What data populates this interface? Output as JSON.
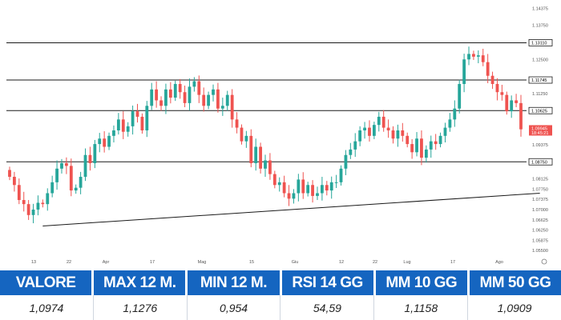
{
  "chart_data": {
    "type": "candlestick",
    "y_ticks": [
      "1.14375",
      "1.13750",
      "1.13110",
      "1.12500",
      "1.11745",
      "1.11250",
      "1.10625",
      "1.09945",
      "1.09375",
      "1.08750",
      "1.08125",
      "1.07750",
      "1.07375",
      "1.07000",
      "1.06625",
      "1.06250",
      "1.05875",
      "1.05500"
    ],
    "y_range": [
      1.053,
      1.145
    ],
    "x_ticks": [
      "13",
      "22",
      "Apr",
      "17",
      "Mag",
      "15",
      "Giu",
      "12",
      "22",
      "Lug",
      "17",
      "Ago"
    ],
    "levels": [
      {
        "value": 1.1311,
        "label": "1.13110"
      },
      {
        "value": 1.11745,
        "label": "1.11745"
      },
      {
        "value": 1.10625,
        "label": "1.10625"
      },
      {
        "value": 1.0875,
        "label": "1.08750"
      }
    ],
    "current_price": {
      "value": 1.09945,
      "label": "1.09945",
      "sublabel": "18:45:21"
    },
    "trendline": [
      {
        "index": 7,
        "price": 1.064
      },
      {
        "index": 112,
        "price": 1.076
      }
    ],
    "closes": [
      1.082,
      1.079,
      1.0735,
      1.072,
      1.068,
      1.07,
      1.0725,
      1.072,
      1.076,
      1.08,
      1.085,
      1.087,
      1.086,
      1.077,
      1.078,
      1.082,
      1.09,
      1.087,
      1.094,
      1.096,
      1.093,
      1.097,
      1.099,
      1.103,
      1.0985,
      1.1005,
      1.106,
      1.104,
      1.099,
      1.108,
      1.114,
      1.11,
      1.108,
      1.114,
      1.111,
      1.116,
      1.113,
      1.109,
      1.115,
      1.117,
      1.112,
      1.108,
      1.112,
      1.114,
      1.107,
      1.108,
      1.112,
      1.103,
      1.1,
      1.095,
      1.097,
      1.087,
      1.093,
      1.085,
      1.088,
      1.083,
      1.079,
      1.08,
      1.076,
      1.074,
      1.076,
      1.081,
      1.076,
      1.079,
      1.075,
      1.076,
      1.079,
      1.077,
      1.08,
      1.08,
      1.085,
      1.09,
      1.092,
      1.095,
      1.099,
      1.1,
      1.097,
      1.101,
      1.104,
      1.1,
      1.099,
      1.096,
      1.099,
      1.097,
      1.094,
      1.091,
      1.096,
      1.089,
      1.092,
      1.095,
      1.094,
      1.097,
      1.1,
      1.103,
      1.107,
      1.116,
      1.125,
      1.127,
      1.126,
      1.1265,
      1.124,
      1.119,
      1.116,
      1.113,
      1.112,
      1.106,
      1.11,
      1.109,
      1.0994
    ]
  },
  "colors": {
    "up": "#26a69a",
    "down": "#ef5350",
    "price_label_bg": "#ef5350",
    "header_bg": "#1565c0"
  },
  "stats": [
    {
      "header": "VALORE",
      "value": "1,0974"
    },
    {
      "header": "MAX 12 M.",
      "value": "1,1276"
    },
    {
      "header": "MIN 12 M.",
      "value": "0,954"
    },
    {
      "header": "RSI 14 GG",
      "value": "54,59"
    },
    {
      "header": "MM 10 GG",
      "value": "1,1158"
    },
    {
      "header": "MM 50 GG",
      "value": "1,0909"
    }
  ]
}
